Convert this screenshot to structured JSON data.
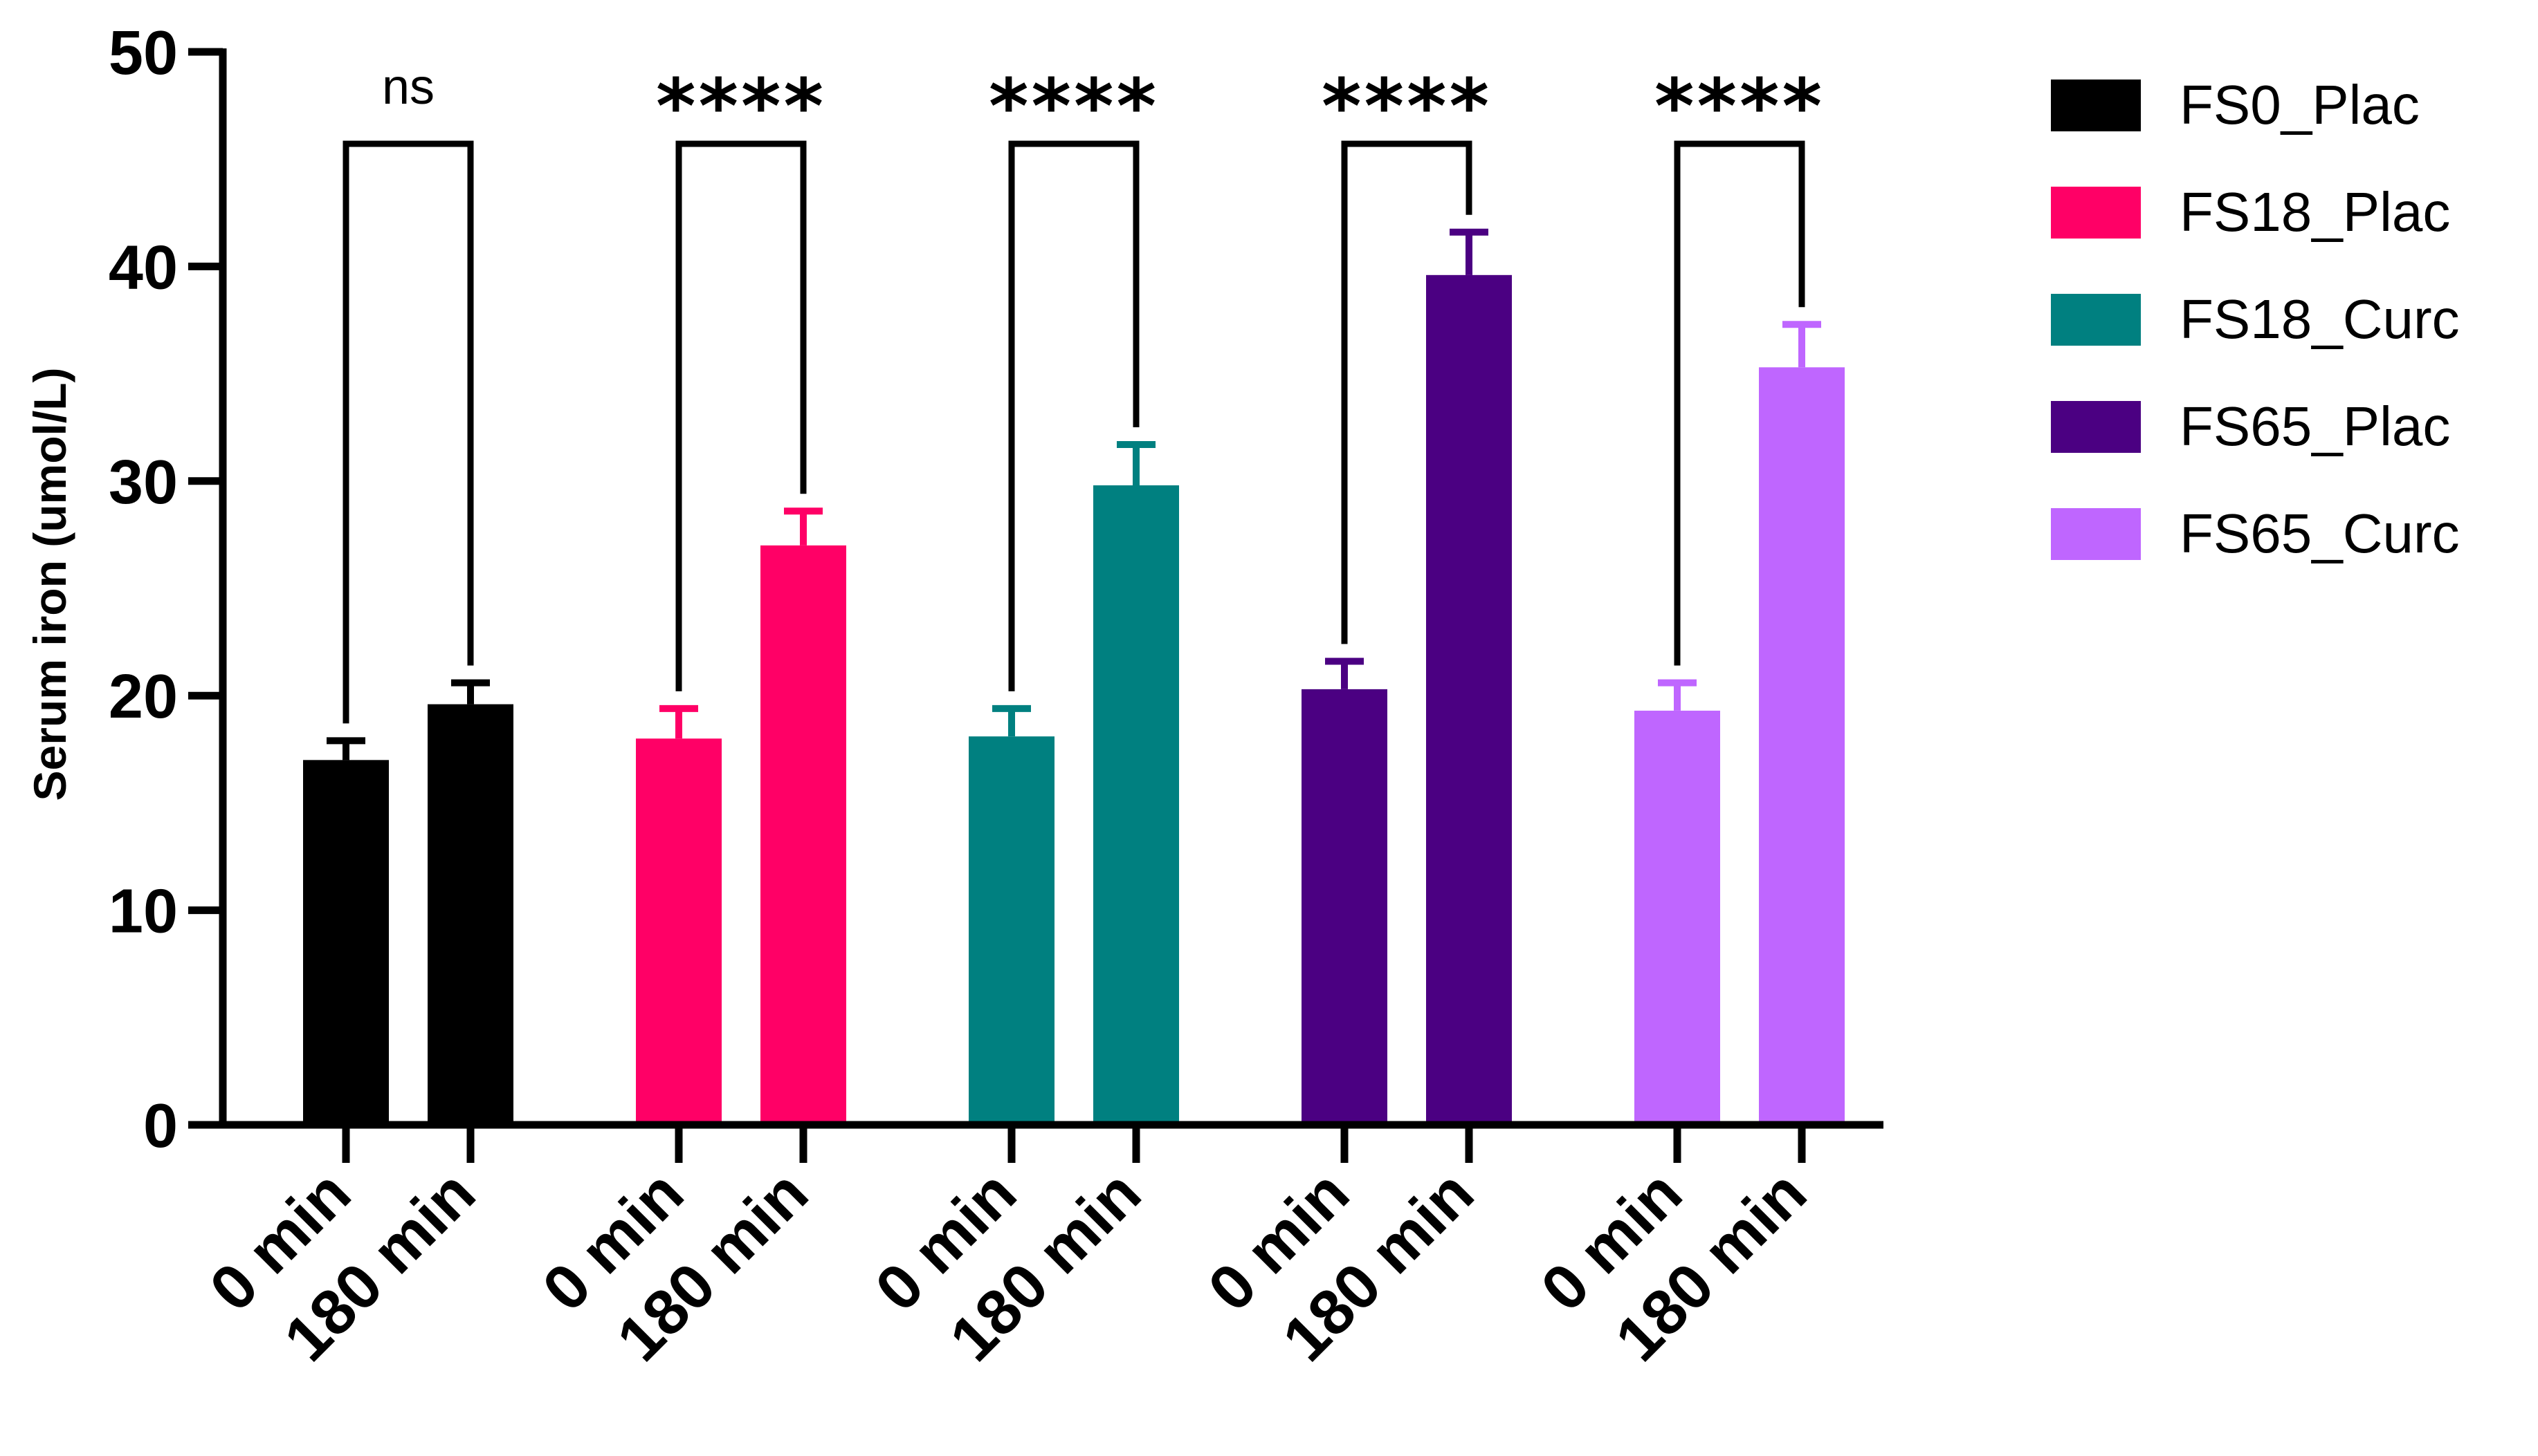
{
  "chart_data": {
    "type": "bar",
    "title": "",
    "xlabel": "",
    "ylabel": "Serum iron (umol/L)",
    "ylim": [
      0,
      50
    ],
    "yticks": [
      "0",
      "10",
      "20",
      "30",
      "40",
      "50"
    ],
    "categories": [
      "0 min",
      "180 min"
    ],
    "groups": [
      {
        "name": "FS0_Plac",
        "color": "#000000",
        "values": [
          17.0,
          19.6
        ],
        "errors": [
          0.9,
          1.0
        ],
        "significance": "ns"
      },
      {
        "name": "FS18_Plac",
        "color": "#ff0066",
        "values": [
          18.0,
          27.0
        ],
        "errors": [
          1.4,
          1.6
        ],
        "significance": "****"
      },
      {
        "name": "FS18_Curc",
        "color": "#008080",
        "values": [
          18.1,
          29.8
        ],
        "errors": [
          1.3,
          1.9
        ],
        "significance": "****"
      },
      {
        "name": "FS65_Plac",
        "color": "#4b0082",
        "values": [
          20.3,
          39.6
        ],
        "errors": [
          1.3,
          2.0
        ],
        "significance": "****"
      },
      {
        "name": "FS65_Curc",
        "color": "#bf66ff",
        "values": [
          19.3,
          35.3
        ],
        "errors": [
          1.3,
          2.0
        ],
        "significance": "****"
      }
    ],
    "legend_position": "right",
    "grid": false
  }
}
